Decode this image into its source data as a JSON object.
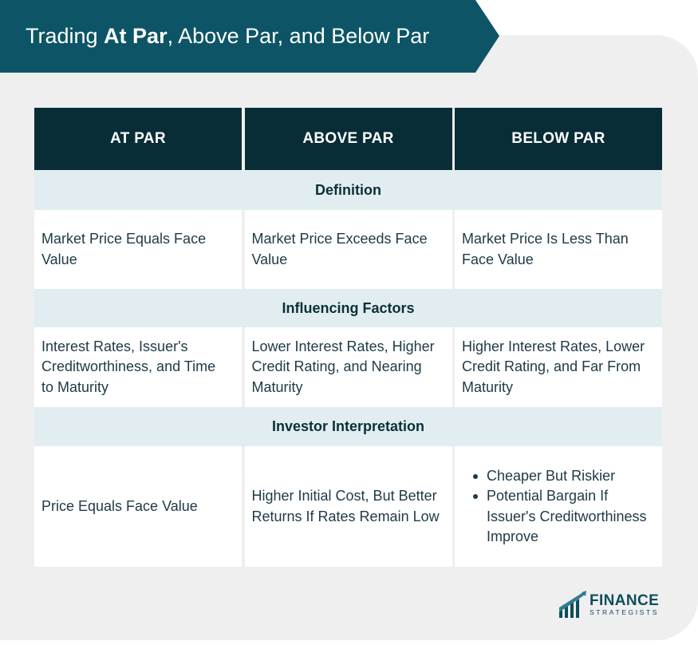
{
  "title": {
    "prefix": "Trading ",
    "bold": "At Par",
    "suffix": ", Above Par, and Below Par"
  },
  "table": {
    "headers": [
      "AT PAR",
      "ABOVE PAR",
      "BELOW PAR"
    ],
    "sections": [
      {
        "label": "Definition",
        "cells": [
          "Market Price Equals Face Value",
          "Market Price Exceeds Face Value",
          "Market Price Is Less Than Face Value"
        ]
      },
      {
        "label": "Influencing Factors",
        "cells": [
          "Interest Rates, Issuer's Creditworthiness, and Time to Maturity",
          "Lower Interest Rates, Higher Credit Rating, and Nearing Maturity",
          "Higher Interest Rates, Lower Credit Rating, and Far From Maturity"
        ]
      },
      {
        "label": "Investor Interpretation",
        "cells": [
          "Price Equals Face Value",
          "Higher Initial Cost, But Better Returns If Rates Remain Low"
        ],
        "bullets": [
          "Cheaper But Riskier",
          "Potential Bargain If Issuer's Creditworthiness Improve"
        ]
      }
    ]
  },
  "logo": {
    "line1": "FINANCE",
    "line2": "STRATEGISTS"
  },
  "colors": {
    "banner": "#0d5566",
    "header": "#082d37",
    "section": "#e1edf0",
    "panel": "#efefef"
  }
}
